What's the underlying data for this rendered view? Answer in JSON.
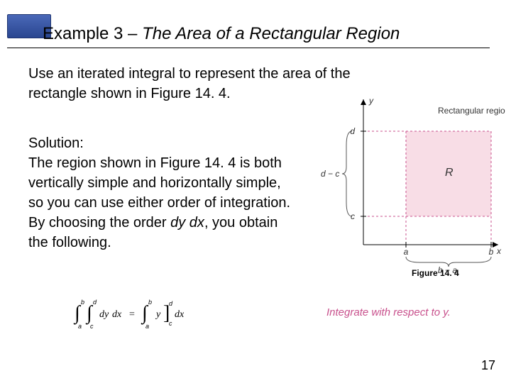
{
  "title": "Example 3 – The Area of a Rectangular Region",
  "intro_l1": "Use an iterated integral to represent the area of the",
  "intro_l2": "rectangle shown in Figure 14. 4.",
  "sol_heading": "Solution:",
  "sol_l1": "The region shown in Figure 14. 4 is both",
  "sol_l2": "vertically simple and horizontally simple,",
  "sol_l3": "so you can use either order of integration.",
  "sol_l4a": "By choosing the order ",
  "sol_l4b": "dy dx",
  "sol_l4c": ", you obtain",
  "sol_l5": "the following.",
  "figure_caption": "Figure 14. 4",
  "integrate_note_a": "Integrate with respect to ",
  "integrate_note_b": "y",
  "integrate_note_c": ".",
  "page_number": "17",
  "diagram": {
    "region_label": "Rectangular region",
    "R_label": "R",
    "y_axis": "y",
    "x_axis": "x",
    "d_label": "d",
    "c_label": "c",
    "a_label": "a",
    "b_label": "b",
    "dc_label": "d − c",
    "ba_label": "b − a",
    "colors": {
      "region_fill": "#f8dde6",
      "axis": "#000000",
      "dashed": "#c8508c",
      "brace": "#444444",
      "label_text": "#333333"
    },
    "fontsize_small": 12,
    "fontsize_R": 16
  },
  "equation": {
    "color": "#000000",
    "fontsize": 16,
    "a": "a",
    "b": "b",
    "c": "c",
    "d": "d",
    "dy": "dy",
    "dx": "dx",
    "y": "y",
    "eq": "="
  },
  "colors": {
    "blue_box_top": "#4a68b8",
    "blue_box_bottom": "#2a4690",
    "magenta": "#c8508c"
  }
}
